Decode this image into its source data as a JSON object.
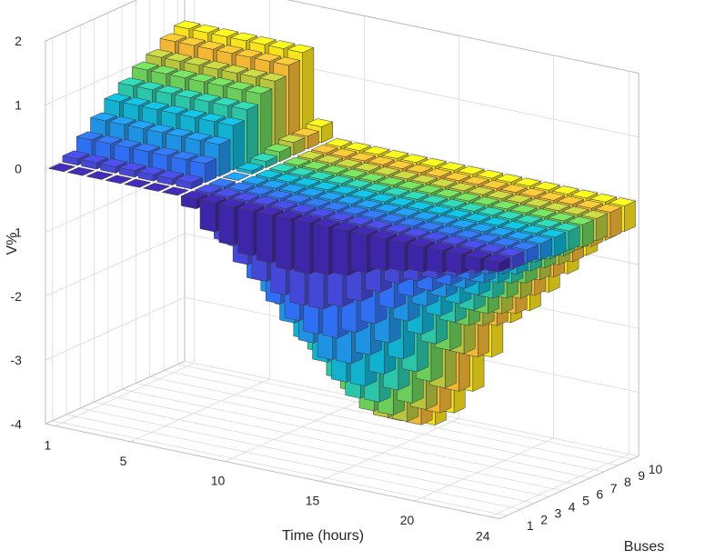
{
  "chart_data": {
    "type": "bar3d",
    "zlabel": "V%",
    "xlabel": "Time (hours)",
    "ylabel": "Buses",
    "zlim": [
      -4,
      2
    ],
    "z_ticks": [
      "2",
      "1",
      "0",
      "-1",
      "-2",
      "-3",
      "-4"
    ],
    "x_ticks": [
      "1",
      "5",
      "10",
      "15",
      "20",
      "24"
    ],
    "y_ticks": [
      "1",
      "2",
      "3",
      "4",
      "5",
      "6",
      "7",
      "8",
      "9",
      "10"
    ],
    "grid": true,
    "colormap": [
      "#3e26a8",
      "#4547d7",
      "#2f6ff3",
      "#1f92e3",
      "#12b1cf",
      "#2cc5a7",
      "#6ccd5a",
      "#b8c53e",
      "#f2b734",
      "#f9e21e"
    ],
    "time_hours": [
      1,
      2,
      3,
      4,
      5,
      6,
      7,
      8,
      9,
      10,
      11,
      12,
      13,
      14,
      15,
      16,
      17,
      18,
      19,
      20,
      21,
      22,
      23,
      24
    ],
    "buses": [
      1,
      2,
      3,
      4,
      5,
      6,
      7,
      8,
      9,
      10
    ],
    "values_by_bus": [
      [
        0.0,
        0.0,
        0.0,
        0.0,
        0.0,
        0.0,
        0.0,
        -0.15,
        -0.45,
        -0.6,
        -0.7,
        -0.75,
        -0.8,
        -0.8,
        -0.75,
        -0.7,
        -0.6,
        -0.5,
        -0.45,
        -0.4,
        -0.35,
        -0.3,
        -0.2,
        -0.15
      ],
      [
        0.1,
        0.1,
        0.1,
        0.1,
        0.1,
        0.1,
        0.1,
        -0.1,
        -0.7,
        -1.0,
        -1.2,
        -1.35,
        -1.45,
        -1.45,
        -1.35,
        -1.2,
        -1.0,
        -0.8,
        -0.7,
        -0.6,
        -0.5,
        -0.4,
        -0.3,
        -0.2
      ],
      [
        0.3,
        0.3,
        0.3,
        0.3,
        0.3,
        0.3,
        0.3,
        -0.05,
        -0.9,
        -1.35,
        -1.65,
        -1.85,
        -2.0,
        -2.0,
        -1.85,
        -1.65,
        -1.35,
        -1.1,
        -0.95,
        -0.8,
        -0.65,
        -0.5,
        -0.35,
        -0.2
      ],
      [
        0.5,
        0.5,
        0.5,
        0.5,
        0.5,
        0.5,
        0.5,
        0.0,
        -1.1,
        -1.65,
        -2.05,
        -2.3,
        -2.5,
        -2.5,
        -2.3,
        -2.05,
        -1.65,
        -1.35,
        -1.15,
        -0.95,
        -0.8,
        -0.6,
        -0.4,
        -0.25
      ],
      [
        0.7,
        0.7,
        0.7,
        0.7,
        0.7,
        0.7,
        0.7,
        0.05,
        -1.3,
        -1.95,
        -2.4,
        -2.7,
        -2.95,
        -2.95,
        -2.7,
        -2.4,
        -1.95,
        -1.6,
        -1.35,
        -1.15,
        -0.9,
        -0.7,
        -0.45,
        -0.3
      ],
      [
        0.85,
        0.85,
        0.85,
        0.85,
        0.85,
        0.85,
        0.85,
        0.1,
        -1.45,
        -2.2,
        -2.7,
        -3.05,
        -3.3,
        -3.3,
        -3.05,
        -2.7,
        -2.2,
        -1.8,
        -1.55,
        -1.3,
        -1.0,
        -0.75,
        -0.5,
        -0.3
      ],
      [
        1.0,
        1.0,
        1.0,
        1.0,
        1.0,
        1.0,
        1.0,
        0.15,
        -1.6,
        -2.4,
        -2.95,
        -3.35,
        -3.6,
        -3.6,
        -3.35,
        -2.95,
        -2.4,
        -1.95,
        -1.7,
        -1.4,
        -1.1,
        -0.8,
        -0.55,
        -0.35
      ],
      [
        1.1,
        1.1,
        1.1,
        1.1,
        1.1,
        1.1,
        1.1,
        0.2,
        -1.7,
        -2.55,
        -3.15,
        -3.55,
        -3.8,
        -3.8,
        -3.55,
        -3.15,
        -2.55,
        -2.05,
        -1.8,
        -1.5,
        -1.15,
        -0.85,
        -0.55,
        -0.35
      ],
      [
        1.25,
        1.25,
        1.25,
        1.25,
        1.25,
        1.25,
        1.25,
        0.2,
        -1.8,
        -2.7,
        -3.3,
        -3.7,
        -3.95,
        -3.95,
        -3.7,
        -3.3,
        -2.7,
        -2.15,
        -1.9,
        -1.55,
        -1.2,
        -0.9,
        -0.6,
        -0.4
      ],
      [
        1.35,
        1.35,
        1.35,
        1.35,
        1.35,
        1.35,
        1.35,
        0.25,
        -1.85,
        -2.8,
        -3.4,
        -3.8,
        -4.05,
        -4.05,
        -3.8,
        -3.4,
        -2.8,
        -2.2,
        -1.95,
        -1.6,
        -1.25,
        -0.9,
        -0.6,
        -0.4
      ]
    ]
  }
}
